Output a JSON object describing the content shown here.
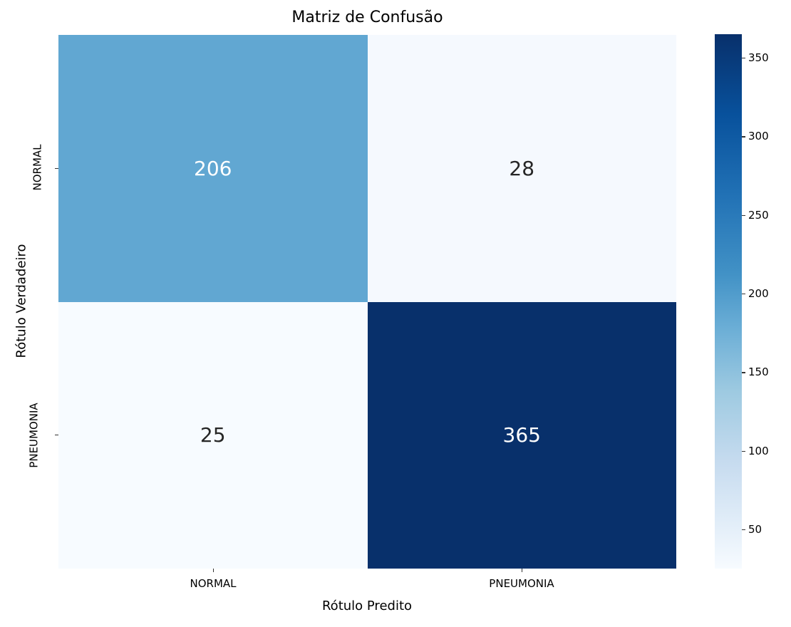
{
  "chart_data": {
    "type": "heatmap",
    "title": "Matriz de Confusão",
    "xlabel": "Rótulo Predito",
    "ylabel": "Rótulo Verdadeiro",
    "x_categories": [
      "NORMAL",
      "PNEUMONIA"
    ],
    "y_categories": [
      "NORMAL",
      "PNEUMONIA"
    ],
    "values": [
      [
        206,
        28
      ],
      [
        25,
        365
      ]
    ],
    "colormap": "Blues",
    "colorbar": {
      "min": 25,
      "max": 365,
      "ticks": [
        50,
        100,
        150,
        200,
        250,
        300,
        350
      ]
    },
    "cell_colors": [
      [
        "#61a7d2",
        "#f5f9fe"
      ],
      [
        "#f7fbff",
        "#08306b"
      ]
    ],
    "text_colors": [
      [
        "#ffffff",
        "#262626"
      ],
      [
        "#262626",
        "#ffffff"
      ]
    ]
  },
  "labels": {
    "cbar_ticks": [
      "350",
      "300",
      "250",
      "200",
      "150",
      "100",
      "50"
    ]
  }
}
